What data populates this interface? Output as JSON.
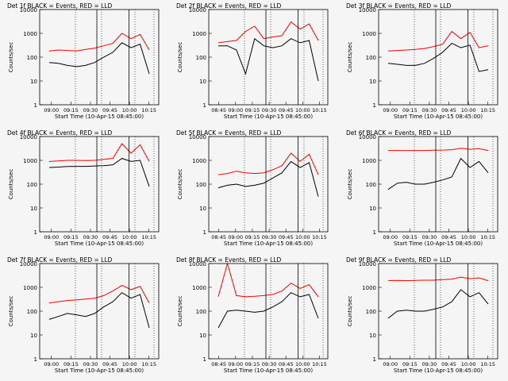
{
  "chart_data": [
    {
      "type": "line",
      "title": "Det 1f BLACK = Events, RED = LLD",
      "ylabel": "Counts/sec",
      "xlabel": "Start Time (10-Apr-15 08:45:00)",
      "x_ticks": [
        "09:00",
        "09:15",
        "09:30",
        "09:45",
        "10:00",
        "10:15"
      ],
      "y_ticks": [
        "1",
        "10",
        "100",
        "1000",
        "10000"
      ],
      "ylim": [
        1,
        10000
      ],
      "scale": "log",
      "series": [
        {
          "color": "#ff0000",
          "values": [
            180,
            200,
            190,
            180,
            210,
            240,
            300,
            380,
            1000,
            600,
            900,
            200
          ]
        },
        {
          "color": "#000000",
          "values": [
            60,
            55,
            45,
            40,
            45,
            60,
            100,
            160,
            400,
            250,
            350,
            20
          ]
        }
      ]
    },
    {
      "type": "line",
      "title": "Det 2f BLACK = Events, RED = LLD",
      "ylabel": "Counts/sec",
      "xlabel": "Start Time (10-Apr-15 08:45:00)",
      "x_ticks": [
        "08:45",
        "09:00",
        "09:15",
        "09:30",
        "09:45",
        "10:00",
        "10:15"
      ],
      "y_ticks": [
        "1",
        "10",
        "100",
        "1000",
        "10000"
      ],
      "ylim": [
        1,
        10000
      ],
      "scale": "log",
      "series": [
        {
          "color": "#ff0000",
          "values": [
            400,
            450,
            500,
            1200,
            2000,
            600,
            700,
            800,
            3000,
            1500,
            2500,
            500
          ]
        },
        {
          "color": "#000000",
          "values": [
            300,
            300,
            200,
            20,
            600,
            300,
            250,
            300,
            600,
            400,
            500,
            10
          ]
        }
      ]
    },
    {
      "type": "line",
      "title": "Det 3f BLACK = Events, RED = LLD",
      "ylabel": "Counts/sec",
      "xlabel": "Start Time (10-Apr-15 08:45:00)",
      "x_ticks": [
        "09:00",
        "09:15",
        "09:30",
        "09:45",
        "10:00",
        "10:15"
      ],
      "y_ticks": [
        "1",
        "10",
        "100",
        "1000",
        "10000"
      ],
      "ylim": [
        1,
        10000
      ],
      "scale": "log",
      "series": [
        {
          "color": "#ff0000",
          "values": [
            180,
            190,
            200,
            210,
            230,
            280,
            350,
            1200,
            600,
            1100,
            250,
            300
          ]
        },
        {
          "color": "#000000",
          "values": [
            55,
            50,
            45,
            45,
            55,
            90,
            160,
            380,
            250,
            320,
            25,
            30
          ]
        }
      ]
    },
    {
      "type": "line",
      "title": "Det 4f BLACK = Events, RED = LLD",
      "ylabel": "Counts/sec",
      "xlabel": "Start Time (10-Apr-15 08:45:00)",
      "x_ticks": [
        "09:00",
        "09:15",
        "09:30",
        "09:45",
        "10:00",
        "10:15"
      ],
      "y_ticks": [
        "1",
        "10",
        "100",
        "1000",
        "10000"
      ],
      "ylim": [
        1,
        10000
      ],
      "scale": "log",
      "series": [
        {
          "color": "#ff0000",
          "values": [
            900,
            950,
            1000,
            1000,
            980,
            1000,
            1100,
            1200,
            5000,
            2000,
            4500,
            900
          ]
        },
        {
          "color": "#000000",
          "values": [
            500,
            520,
            550,
            560,
            560,
            580,
            600,
            650,
            1200,
            900,
            1000,
            80
          ]
        }
      ]
    },
    {
      "type": "line",
      "title": "Det 5f BLACK = Events, RED = LLD",
      "ylabel": "Counts/sec",
      "xlabel": "Start Time (10-Apr-15 08:45:00)",
      "x_ticks": [
        "08:45",
        "09:00",
        "09:15",
        "09:30",
        "09:45",
        "10:00",
        "10:15"
      ],
      "y_ticks": [
        "1",
        "10",
        "100",
        "1000",
        "10000"
      ],
      "ylim": [
        1,
        10000
      ],
      "scale": "log",
      "series": [
        {
          "color": "#ff0000",
          "values": [
            250,
            280,
            350,
            300,
            280,
            300,
            400,
            600,
            2000,
            900,
            1800,
            250
          ]
        },
        {
          "color": "#000000",
          "values": [
            70,
            90,
            100,
            80,
            90,
            110,
            180,
            300,
            900,
            500,
            800,
            30
          ]
        }
      ]
    },
    {
      "type": "line",
      "title": "Det 6f BLACK = Events, RED = LLD",
      "ylabel": "Counts/sec",
      "xlabel": "Start Time (10-Apr-15 08:45:00)",
      "x_ticks": [
        "09:00",
        "09:15",
        "09:30",
        "09:45",
        "10:00",
        "10:15"
      ],
      "y_ticks": [
        "1",
        "10",
        "100",
        "1000",
        "10000"
      ],
      "ylim": [
        1,
        10000
      ],
      "scale": "log",
      "series": [
        {
          "color": "#ff0000",
          "values": [
            2600,
            2600,
            2600,
            2600,
            2600,
            2650,
            2700,
            2800,
            3200,
            2900,
            3100,
            2600
          ]
        },
        {
          "color": "#000000",
          "values": [
            60,
            110,
            120,
            100,
            100,
            120,
            150,
            200,
            1200,
            500,
            900,
            300
          ]
        }
      ]
    },
    {
      "type": "line",
      "title": "Det 7f BLACK = Events, RED = LLD",
      "ylabel": "Counts/sec",
      "xlabel": "Start Time (10-Apr-15 08:45:00)",
      "x_ticks": [
        "09:00",
        "09:15",
        "09:30",
        "09:45",
        "10:00",
        "10:15"
      ],
      "y_ticks": [
        "1",
        "10",
        "100",
        "1000",
        "10000"
      ],
      "ylim": [
        1,
        10000
      ],
      "scale": "log",
      "series": [
        {
          "color": "#ff0000",
          "values": [
            220,
            250,
            280,
            300,
            320,
            350,
            450,
            700,
            1200,
            800,
            1100,
            220
          ]
        },
        {
          "color": "#000000",
          "values": [
            45,
            60,
            80,
            70,
            60,
            80,
            150,
            250,
            600,
            350,
            500,
            20
          ]
        }
      ]
    },
    {
      "type": "line",
      "title": "Det 8f BLACK = Events, RED = LLD",
      "ylabel": "Counts/sec",
      "xlabel": "Start Time (10-Apr-15 08:45:00)",
      "x_ticks": [
        "08:45",
        "09:00",
        "09:15",
        "09:30",
        "09:45",
        "10:00",
        "10:15"
      ],
      "y_ticks": [
        "1",
        "10",
        "100",
        "1000",
        "10000"
      ],
      "ylim": [
        1,
        10000
      ],
      "scale": "log",
      "series": [
        {
          "color": "#ff0000",
          "values": [
            400,
            10000,
            450,
            400,
            420,
            450,
            500,
            700,
            1500,
            900,
            1300,
            400
          ]
        },
        {
          "color": "#000000",
          "values": [
            20,
            100,
            110,
            100,
            90,
            100,
            150,
            250,
            600,
            400,
            500,
            50
          ]
        }
      ]
    },
    {
      "type": "line",
      "title": "Det 9f BLACK = Events, RED = LLD",
      "ylabel": "Counts/sec",
      "xlabel": "Start Time (10-Apr-15 08:45:00)",
      "x_ticks": [
        "09:00",
        "09:15",
        "09:30",
        "09:45",
        "10:00",
        "10:15"
      ],
      "y_ticks": [
        "1",
        "10",
        "100",
        "1000",
        "10000"
      ],
      "ylim": [
        1,
        10000
      ],
      "scale": "log",
      "series": [
        {
          "color": "#ff0000",
          "values": [
            1900,
            1950,
            1900,
            1950,
            2000,
            2000,
            2100,
            2200,
            2700,
            2300,
            2500,
            1900
          ]
        },
        {
          "color": "#000000",
          "values": [
            50,
            100,
            110,
            100,
            100,
            120,
            150,
            250,
            800,
            400,
            600,
            200
          ]
        }
      ]
    }
  ]
}
